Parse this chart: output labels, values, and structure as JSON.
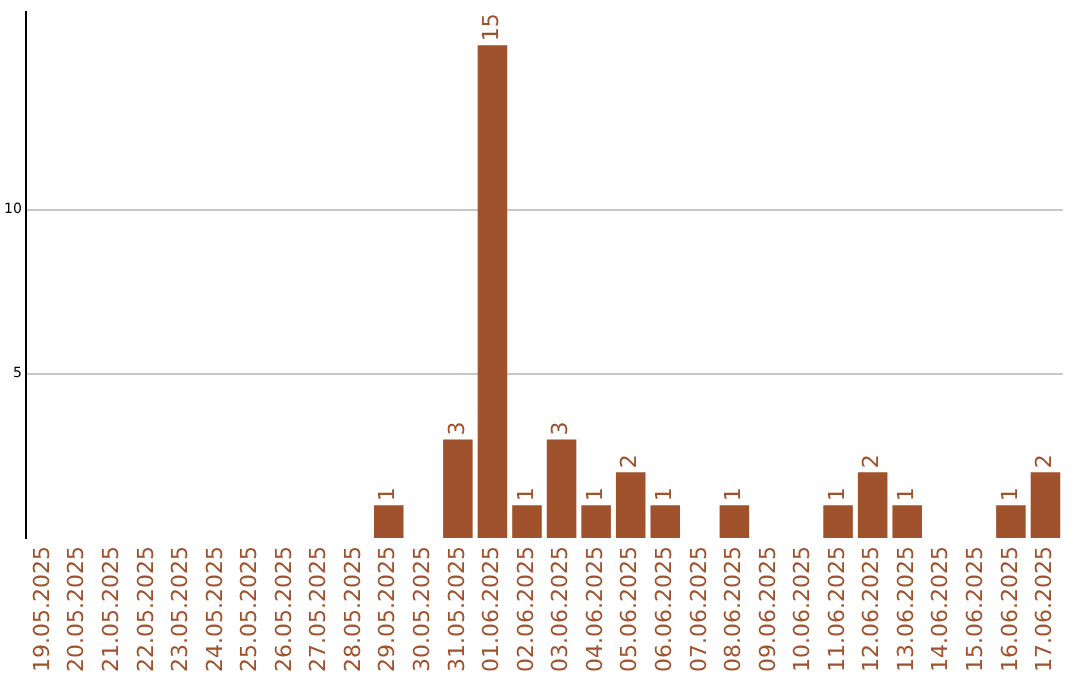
{
  "chart_data": {
    "type": "bar",
    "categories": [
      "19.05.2025",
      "20.05.2025",
      "21.05.2025",
      "22.05.2025",
      "23.05.2025",
      "24.05.2025",
      "25.05.2025",
      "26.05.2025",
      "27.05.2025",
      "28.05.2025",
      "29.05.2025",
      "30.05.2025",
      "31.05.2025",
      "01.06.2025",
      "02.06.2025",
      "03.06.2025",
      "04.06.2025",
      "05.06.2025",
      "06.06.2025",
      "07.06.2025",
      "08.06.2025",
      "09.06.2025",
      "10.06.2025",
      "11.06.2025",
      "12.06.2025",
      "13.06.2025",
      "14.06.2025",
      "15.06.2025",
      "16.06.2025",
      "17.06.2025"
    ],
    "values": [
      0,
      0,
      0,
      0,
      0,
      0,
      0,
      0,
      0,
      0,
      1,
      0,
      3,
      15,
      1,
      3,
      1,
      2,
      1,
      0,
      1,
      0,
      0,
      1,
      2,
      1,
      0,
      0,
      1,
      2
    ],
    "value_labels": [
      null,
      null,
      null,
      null,
      null,
      null,
      null,
      null,
      null,
      null,
      "1",
      null,
      "3",
      "15",
      "1",
      "3",
      "1",
      "2",
      "1",
      null,
      "1",
      null,
      null,
      "1",
      "2",
      "1",
      null,
      null,
      "1",
      "2"
    ],
    "color": "#a0522d",
    "ylim": [
      0,
      16
    ],
    "yticks": [
      5,
      10
    ],
    "grid": "y",
    "legend": false
  }
}
